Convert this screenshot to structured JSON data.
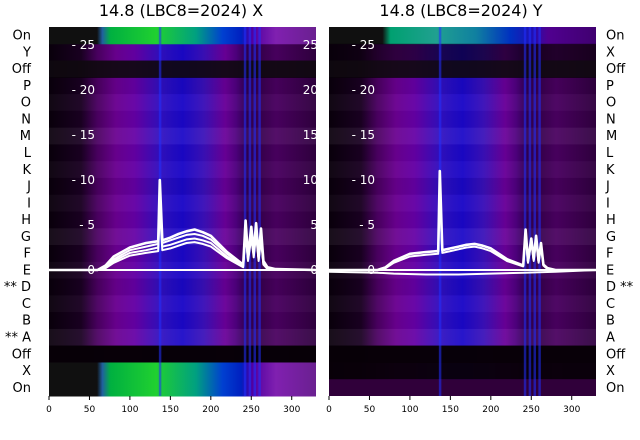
{
  "chart_data": [
    {
      "type": "heatmap",
      "title": "14.8 (LBC8=2024) X",
      "xlim": [
        0,
        330
      ],
      "x_ticks": [
        0,
        50,
        100,
        150,
        200,
        250,
        300
      ],
      "ylim": [
        -14,
        27
      ],
      "y_ticks": [
        0,
        5,
        10,
        15,
        20,
        25
      ],
      "row_labels": [
        "On",
        "Y",
        "Off",
        "P",
        "O",
        "N",
        "M",
        "L",
        "K",
        "J",
        "I",
        "H",
        "G",
        "F",
        "E",
        "** D",
        "C",
        "B",
        "** A",
        "Off",
        "X",
        "On"
      ],
      "series": [
        {
          "x": [
            0,
            60,
            70,
            80,
            100,
            120,
            135,
            137,
            140,
            150,
            160,
            170,
            180,
            190,
            200,
            220,
            240,
            243,
            246,
            250,
            253,
            256,
            259,
            262,
            265,
            270,
            280,
            330
          ],
          "values": [
            0,
            0,
            0.5,
            1.5,
            2.5,
            3,
            3.2,
            10,
            3.3,
            3.6,
            4,
            4.3,
            4.5,
            4.2,
            3.8,
            2,
            0.6,
            5.5,
            1.5,
            4.8,
            2,
            5.2,
            1.5,
            4.6,
            1,
            0.3,
            0.1,
            0
          ]
        },
        {
          "x": [
            0,
            60,
            70,
            80,
            100,
            120,
            135,
            137,
            140,
            150,
            160,
            170,
            180,
            190,
            200,
            220,
            240,
            243,
            246,
            250,
            253,
            256,
            259,
            262,
            265,
            270,
            280,
            330
          ],
          "values": [
            0,
            0,
            0.4,
            1.2,
            2.2,
            2.6,
            2.9,
            9,
            3,
            3.3,
            3.6,
            3.9,
            4,
            3.8,
            3.4,
            1.8,
            0.5,
            5,
            1.3,
            4.4,
            1.8,
            4.8,
            1.3,
            4.2,
            0.8,
            0.2,
            0,
            0
          ]
        },
        {
          "x": [
            0,
            60,
            70,
            80,
            100,
            120,
            135,
            137,
            140,
            150,
            160,
            170,
            180,
            190,
            200,
            220,
            240,
            243,
            246,
            250,
            253,
            256,
            259,
            262,
            265,
            270,
            280,
            330
          ],
          "values": [
            0,
            0,
            0.3,
            1,
            1.9,
            2.2,
            2.5,
            8,
            2.6,
            2.8,
            3.1,
            3.4,
            3.5,
            3.3,
            3,
            1.5,
            0.4,
            4.5,
            1.1,
            4,
            1.6,
            4.4,
            1.1,
            3.8,
            0.7,
            0.2,
            0,
            0
          ]
        },
        {
          "x": [
            0,
            60,
            70,
            80,
            100,
            120,
            135,
            137,
            140,
            150,
            160,
            170,
            180,
            190,
            200,
            220,
            240,
            243,
            246,
            250,
            253,
            256,
            259,
            262,
            265,
            270,
            280,
            330
          ],
          "values": [
            0,
            0,
            0.2,
            0.8,
            1.6,
            1.9,
            2.1,
            7,
            2.2,
            2.4,
            2.7,
            3,
            3.1,
            2.9,
            2.6,
            1.3,
            0.3,
            4,
            1,
            3.6,
            1.4,
            4,
            1,
            3.4,
            0.6,
            0.1,
            0,
            0
          ]
        }
      ]
    },
    {
      "type": "heatmap",
      "title": "14.8 (LBC8=2024) Y",
      "xlim": [
        0,
        330
      ],
      "x_ticks": [
        0,
        50,
        100,
        150,
        200,
        250,
        300
      ],
      "ylim": [
        -14,
        27
      ],
      "y_ticks": [
        0,
        5,
        10,
        15,
        20,
        25
      ],
      "row_labels": [
        "On",
        "X",
        "Off",
        "P",
        "O",
        "N",
        "M",
        "L",
        "K",
        "J",
        "I",
        "H",
        "G",
        "F",
        "E",
        "D **",
        "C",
        "B",
        "A",
        "Off",
        "X",
        "On"
      ],
      "series": [
        {
          "x": [
            0,
            60,
            70,
            80,
            100,
            120,
            135,
            137,
            140,
            150,
            160,
            170,
            180,
            190,
            200,
            220,
            240,
            243,
            246,
            250,
            253,
            256,
            259,
            262,
            265,
            270,
            280,
            330
          ],
          "values": [
            0,
            0,
            0.3,
            1,
            1.8,
            2,
            2.1,
            11,
            2.2,
            2.4,
            2.6,
            2.8,
            2.9,
            2.7,
            2.4,
            1.2,
            0.5,
            4.5,
            1,
            3.5,
            1.2,
            3.8,
            1,
            3,
            0.6,
            0.2,
            0,
            0
          ]
        },
        {
          "x": [
            0,
            60,
            70,
            80,
            100,
            120,
            135,
            137,
            140,
            150,
            160,
            170,
            180,
            190,
            200,
            220,
            240,
            243,
            246,
            250,
            253,
            256,
            259,
            262,
            265,
            270,
            280,
            330
          ],
          "values": [
            0,
            0,
            0.2,
            0.8,
            1.5,
            1.7,
            1.8,
            9,
            1.9,
            2.1,
            2.3,
            2.5,
            2.6,
            2.4,
            2.1,
            1,
            0.4,
            4,
            0.8,
            3.1,
            1,
            3.4,
            0.8,
            2.7,
            0.5,
            0.1,
            0,
            0
          ]
        },
        {
          "x": [
            0,
            60,
            80,
            120,
            160,
            200,
            240,
            280,
            330
          ],
          "values": [
            -0.2,
            -0.3,
            -0.4,
            -0.5,
            -0.5,
            -0.4,
            -0.3,
            -0.2,
            0
          ]
        }
      ]
    }
  ]
}
